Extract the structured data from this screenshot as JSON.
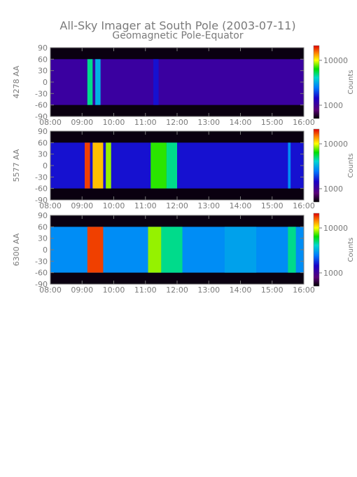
{
  "title_line1": "All-Sky Imager at South Pole (2003-07-11)",
  "title_line2": "Geomagnetic Pole-Equator",
  "colors": {
    "axis": "#7a7a7a",
    "background": "#ffffff"
  },
  "chart_data": [
    {
      "type": "heatmap",
      "panel": 0,
      "ylabel": "4278 AA",
      "x_ticks": [
        "08:00",
        "09:00",
        "10:00",
        "11:00",
        "12:00",
        "13:00",
        "14:00",
        "15:00",
        "16:00"
      ],
      "y_ticks": [
        90,
        60,
        30,
        0,
        -30,
        -60,
        -90
      ],
      "xlim": [
        "08:00",
        "16:00"
      ],
      "ylim": [
        -90,
        90
      ],
      "data_range_latitude": [
        -60,
        60
      ],
      "colorbar": {
        "label": "Counts",
        "ticks": [
          "10000",
          "1000"
        ],
        "scale": "log"
      },
      "bright_intervals": [
        {
          "start": "09:10",
          "end": "09:20",
          "level": 0.6
        },
        {
          "start": "09:25",
          "end": "09:35",
          "level": 0.5
        },
        {
          "start": "11:15",
          "end": "11:25",
          "level": 0.3
        }
      ],
      "background_level": 0.2
    },
    {
      "type": "heatmap",
      "panel": 1,
      "ylabel": "5577 AA",
      "x_ticks": [
        "08:00",
        "09:00",
        "10:00",
        "11:00",
        "12:00",
        "13:00",
        "14:00",
        "15:00",
        "16:00"
      ],
      "y_ticks": [
        90,
        60,
        30,
        0,
        -30,
        -60,
        -90
      ],
      "xlim": [
        "08:00",
        "16:00"
      ],
      "ylim": [
        -90,
        90
      ],
      "data_range_latitude": [
        -60,
        60
      ],
      "colorbar": {
        "label": "Counts",
        "ticks": [
          "10000",
          "1000"
        ],
        "scale": "log"
      },
      "bright_intervals": [
        {
          "start": "09:05",
          "end": "09:15",
          "level": 0.95
        },
        {
          "start": "09:20",
          "end": "09:40",
          "level": 0.85
        },
        {
          "start": "09:45",
          "end": "09:55",
          "level": 0.75
        },
        {
          "start": "11:10",
          "end": "11:40",
          "level": 0.7
        },
        {
          "start": "11:40",
          "end": "12:00",
          "level": 0.6
        },
        {
          "start": "15:30",
          "end": "15:35",
          "level": 0.45
        }
      ],
      "background_level": 0.3
    },
    {
      "type": "heatmap",
      "panel": 2,
      "ylabel": "6300 AA",
      "x_ticks": [
        "08:00",
        "09:00",
        "10:00",
        "11:00",
        "12:00",
        "13:00",
        "14:00",
        "15:00",
        "16:00"
      ],
      "y_ticks": [
        90,
        60,
        30,
        0,
        -30,
        -60,
        -90
      ],
      "xlim": [
        "08:00",
        "16:00"
      ],
      "ylim": [
        -90,
        90
      ],
      "data_range_latitude": [
        -60,
        60
      ],
      "colorbar": {
        "label": "Counts",
        "ticks": [
          "10000",
          "1000"
        ],
        "scale": "log"
      },
      "bright_intervals": [
        {
          "start": "09:10",
          "end": "09:40",
          "level": 0.95
        },
        {
          "start": "11:05",
          "end": "11:30",
          "level": 0.75
        },
        {
          "start": "11:30",
          "end": "12:10",
          "level": 0.6
        },
        {
          "start": "13:30",
          "end": "14:30",
          "level": 0.48
        },
        {
          "start": "15:30",
          "end": "15:45",
          "level": 0.6
        }
      ],
      "background_level": 0.45
    }
  ]
}
